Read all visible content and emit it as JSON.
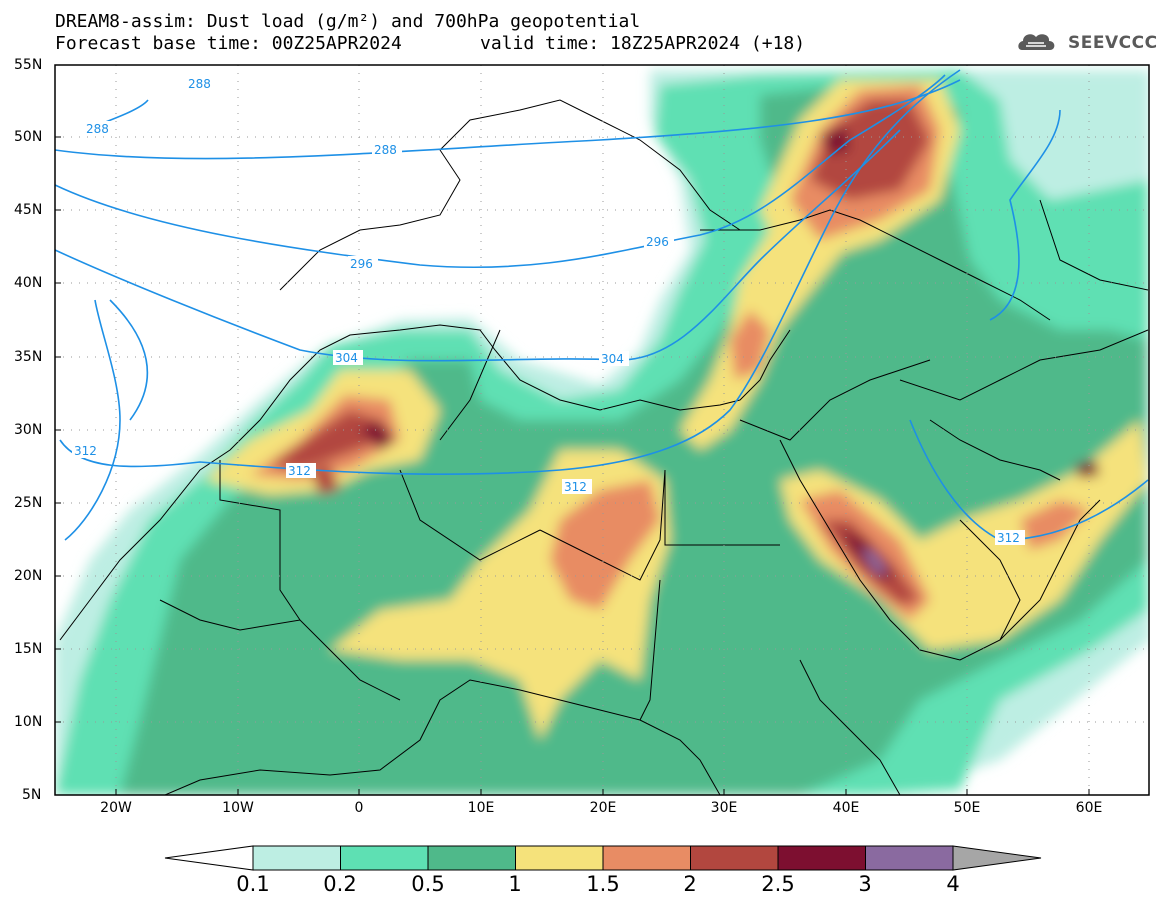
{
  "header": {
    "line1": "DREAM8-assim: Dust load (g/m²) and 700hPa geopotential",
    "line2_base": "Forecast base time: 00Z25APR2024",
    "line2_valid": "valid time: 18Z25APR2024 (+18)"
  },
  "logo": {
    "text": "SEEVCCC",
    "icon": "cloud-logo-icon"
  },
  "axes": {
    "lat_labels": [
      "55N",
      "50N",
      "45N",
      "40N",
      "35N",
      "30N",
      "25N",
      "20N",
      "15N",
      "10N",
      "5N"
    ],
    "lon_labels": [
      "20W",
      "10W",
      "0",
      "10E",
      "20E",
      "30E",
      "40E",
      "50E",
      "60E"
    ]
  },
  "contours": {
    "labels": [
      "288",
      "288",
      "288",
      "296",
      "296",
      "304",
      "304",
      "312",
      "312",
      "312",
      "312"
    ]
  },
  "colorbar": {
    "labels": [
      "0.1",
      "0.2",
      "0.5",
      "1",
      "1.5",
      "2",
      "2.5",
      "3",
      "4"
    ],
    "colors": [
      "#bdeee3",
      "#5ee0b3",
      "#4fb98a",
      "#f5e27b",
      "#e88c64",
      "#b2473f",
      "#7d0f30",
      "#8a6aa0"
    ],
    "under_color": "#ffffff",
    "over_color": "#a6a6a6"
  },
  "colors": {
    "contour": "#1e90e6",
    "border": "#000000"
  }
}
